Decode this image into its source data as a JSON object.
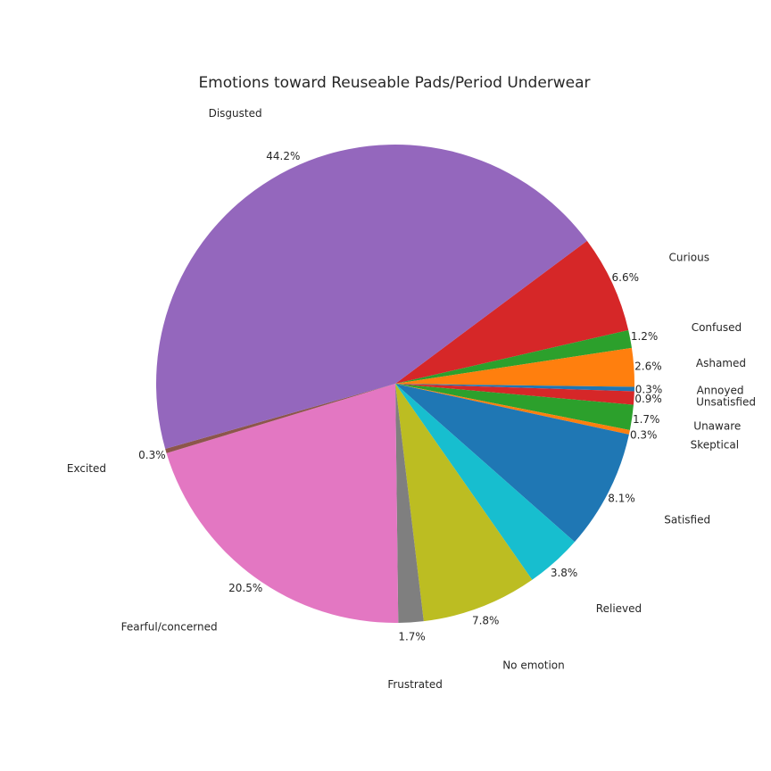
{
  "chart_data": {
    "type": "pie",
    "title": "Emotions toward Reuseable Pads/Period Underwear",
    "slices": [
      {
        "label": "Curious",
        "value": 6.6,
        "pct": "6.6%",
        "color": "#d62728"
      },
      {
        "label": "Confused",
        "value": 1.2,
        "pct": "1.2%",
        "color": "#2ca02c"
      },
      {
        "label": "Ashamed",
        "value": 2.6,
        "pct": "2.6%",
        "color": "#ff7f0e"
      },
      {
        "label": "Annoyed",
        "value": 0.3,
        "pct": "0.3%",
        "color": "#1f77b4"
      },
      {
        "label": "Unsatisfied",
        "value": 0.9,
        "pct": "0.9%",
        "color": "#d62728"
      },
      {
        "label": "Unaware",
        "value": 1.7,
        "pct": "1.7%",
        "color": "#2ca02c"
      },
      {
        "label": "Skeptical",
        "value": 0.3,
        "pct": "0.3%",
        "color": "#ff7f0e"
      },
      {
        "label": "Satisfied",
        "value": 8.1,
        "pct": "8.1%",
        "color": "#1f77b4"
      },
      {
        "label": "Relieved",
        "value": 3.8,
        "pct": "3.8%",
        "color": "#17becf"
      },
      {
        "label": "No emotion",
        "value": 7.8,
        "pct": "7.8%",
        "color": "#bcbd22"
      },
      {
        "label": "Frustrated",
        "value": 1.7,
        "pct": "1.7%",
        "color": "#7f7f7f"
      },
      {
        "label": "Fearful/concerned",
        "value": 20.5,
        "pct": "20.5%",
        "color": "#e377c2"
      },
      {
        "label": "Excited",
        "value": 0.3,
        "pct": "0.3%",
        "color": "#8c564b"
      },
      {
        "label": "Disgusted",
        "value": 44.2,
        "pct": "44.2%",
        "color": "#9467bd"
      }
    ],
    "start_angle_deg": 36.7,
    "direction": "clockwise"
  }
}
